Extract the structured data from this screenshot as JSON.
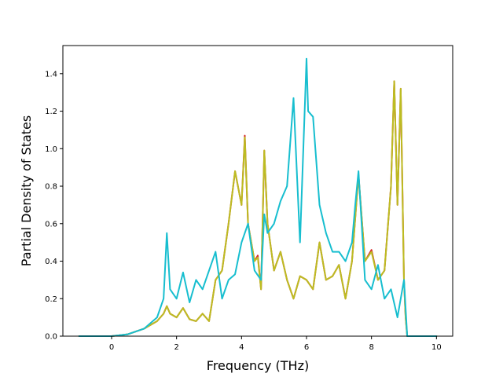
{
  "chart_data": {
    "type": "line",
    "title": "",
    "xlabel": "Frequency (THz)",
    "ylabel": "Partial Density of States",
    "xlim": [
      -1.5,
      10.5
    ],
    "ylim": [
      0.0,
      1.55
    ],
    "xticks": [
      0,
      2,
      4,
      6,
      8,
      10
    ],
    "yticks": [
      0.0,
      0.2,
      0.4,
      0.6,
      0.8,
      1.0,
      1.2,
      1.4
    ],
    "xtick_labels": [
      "0",
      "2",
      "4",
      "6",
      "8",
      "10"
    ],
    "ytick_labels": [
      "0.0",
      "0.2",
      "0.4",
      "0.6",
      "0.8",
      "1.0",
      "1.2",
      "1.4"
    ],
    "grid": false,
    "legend": "none",
    "series": [
      {
        "color": "#d62728",
        "x": [
          -1.0,
          0.0,
          0.5,
          1.0,
          1.4,
          1.6,
          1.7,
          1.8,
          2.0,
          2.2,
          2.4,
          2.6,
          2.8,
          3.0,
          3.2,
          3.4,
          3.6,
          3.8,
          4.0,
          4.1,
          4.2,
          4.4,
          4.5,
          4.6,
          4.7,
          4.8,
          5.0,
          5.2,
          5.4,
          5.6,
          5.8,
          6.0,
          6.2,
          6.4,
          6.6,
          6.8,
          7.0,
          7.2,
          7.4,
          7.6,
          7.8,
          8.0,
          8.2,
          8.4,
          8.6,
          8.7,
          8.8,
          8.9,
          9.0,
          9.05,
          9.1,
          10.0
        ],
        "y": [
          0.0,
          0.0,
          0.01,
          0.04,
          0.08,
          0.12,
          0.16,
          0.12,
          0.1,
          0.15,
          0.09,
          0.08,
          0.12,
          0.08,
          0.3,
          0.35,
          0.6,
          0.88,
          0.7,
          1.07,
          0.6,
          0.4,
          0.43,
          0.25,
          0.99,
          0.6,
          0.35,
          0.45,
          0.3,
          0.2,
          0.32,
          0.3,
          0.25,
          0.5,
          0.3,
          0.32,
          0.38,
          0.2,
          0.4,
          0.86,
          0.4,
          0.46,
          0.3,
          0.35,
          0.8,
          1.36,
          0.7,
          1.32,
          0.3,
          0.1,
          0.0,
          0.0
        ]
      },
      {
        "color": "#bcbd22",
        "x": [
          -1.0,
          0.0,
          0.5,
          1.0,
          1.4,
          1.6,
          1.7,
          1.8,
          2.0,
          2.2,
          2.4,
          2.6,
          2.8,
          3.0,
          3.2,
          3.4,
          3.6,
          3.8,
          4.0,
          4.1,
          4.2,
          4.4,
          4.5,
          4.6,
          4.7,
          4.8,
          5.0,
          5.2,
          5.4,
          5.6,
          5.8,
          6.0,
          6.2,
          6.4,
          6.6,
          6.8,
          7.0,
          7.2,
          7.4,
          7.6,
          7.8,
          8.0,
          8.2,
          8.4,
          8.6,
          8.7,
          8.8,
          8.9,
          9.0,
          9.05,
          9.1,
          10.0
        ],
        "y": [
          0.0,
          0.0,
          0.01,
          0.04,
          0.08,
          0.12,
          0.16,
          0.12,
          0.1,
          0.15,
          0.09,
          0.08,
          0.12,
          0.08,
          0.3,
          0.35,
          0.6,
          0.88,
          0.7,
          1.06,
          0.6,
          0.4,
          0.42,
          0.25,
          0.99,
          0.6,
          0.35,
          0.45,
          0.3,
          0.2,
          0.32,
          0.3,
          0.25,
          0.5,
          0.3,
          0.32,
          0.38,
          0.2,
          0.4,
          0.86,
          0.4,
          0.45,
          0.3,
          0.35,
          0.8,
          1.36,
          0.7,
          1.32,
          0.3,
          0.1,
          0.0,
          0.0
        ]
      },
      {
        "color": "#17becf",
        "x": [
          -1.0,
          0.0,
          0.5,
          1.0,
          1.4,
          1.6,
          1.7,
          1.8,
          2.0,
          2.2,
          2.4,
          2.6,
          2.8,
          3.0,
          3.2,
          3.4,
          3.6,
          3.8,
          4.0,
          4.2,
          4.4,
          4.6,
          4.7,
          4.8,
          5.0,
          5.2,
          5.4,
          5.6,
          5.8,
          6.0,
          6.05,
          6.2,
          6.4,
          6.6,
          6.8,
          7.0,
          7.2,
          7.4,
          7.5,
          7.6,
          7.8,
          8.0,
          8.2,
          8.4,
          8.6,
          8.8,
          9.0,
          9.1,
          10.0
        ],
        "y": [
          0.0,
          0.0,
          0.01,
          0.04,
          0.1,
          0.2,
          0.55,
          0.25,
          0.2,
          0.34,
          0.18,
          0.3,
          0.25,
          0.35,
          0.45,
          0.2,
          0.3,
          0.33,
          0.5,
          0.6,
          0.35,
          0.3,
          0.65,
          0.55,
          0.6,
          0.72,
          0.8,
          1.27,
          0.5,
          1.48,
          1.2,
          1.17,
          0.7,
          0.55,
          0.45,
          0.45,
          0.4,
          0.5,
          0.7,
          0.88,
          0.3,
          0.25,
          0.38,
          0.2,
          0.25,
          0.1,
          0.3,
          0.0,
          0.0
        ]
      }
    ]
  }
}
